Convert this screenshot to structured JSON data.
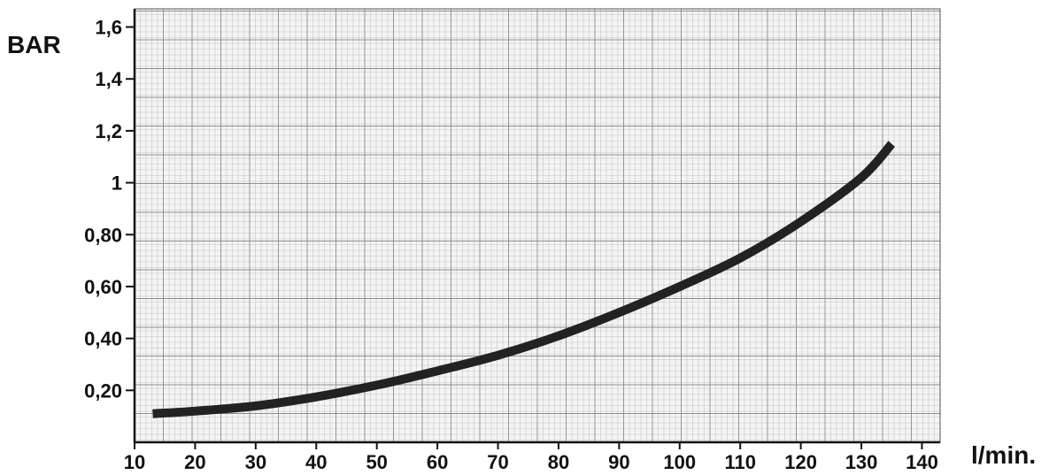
{
  "chart_data": {
    "type": "line",
    "xlabel": "l/min.",
    "ylabel": "BAR",
    "xlim": [
      10,
      143
    ],
    "ylim": [
      0,
      1.67
    ],
    "grid": true,
    "x_ticks": [
      10,
      20,
      30,
      40,
      50,
      60,
      70,
      80,
      90,
      100,
      110,
      120,
      130,
      140
    ],
    "x_tick_labels": [
      "10",
      "20",
      "30",
      "40",
      "50",
      "60",
      "70",
      "80",
      "90",
      "100",
      "110",
      "120",
      "130",
      "140"
    ],
    "y_ticks": [
      0.2,
      0.4,
      0.6,
      0.8,
      1.0,
      1.2,
      1.4,
      1.6
    ],
    "y_tick_labels": [
      "0,20",
      "0,40",
      "0,60",
      "0,80",
      "1",
      "1,2",
      "1,4",
      "1,6"
    ],
    "series": [
      {
        "color": "#222222",
        "x": [
          13,
          20,
          30,
          40,
          50,
          60,
          70,
          80,
          90,
          100,
          110,
          120,
          130,
          135
        ],
        "y": [
          0.11,
          0.12,
          0.14,
          0.175,
          0.22,
          0.275,
          0.335,
          0.41,
          0.5,
          0.6,
          0.71,
          0.85,
          1.02,
          1.15
        ]
      }
    ]
  }
}
